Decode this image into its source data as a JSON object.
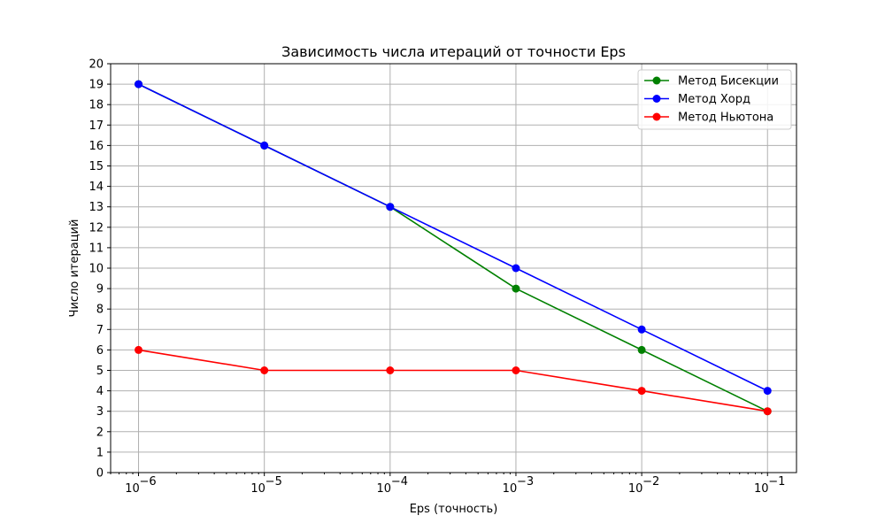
{
  "chart_data": {
    "type": "line",
    "title": "Зависимость числа итераций от точности Eps",
    "xlabel": "Eps (точность)",
    "ylabel": "Число итераций",
    "x_scale": "log",
    "xlim": [
      6e-07,
      0.17
    ],
    "ylim": [
      0,
      20
    ],
    "grid": true,
    "legend_position": "top-right",
    "x": [
      1e-06,
      1e-05,
      0.0001,
      0.001,
      0.01,
      0.1
    ],
    "x_tick_labels": [
      {
        "value": 1e-06,
        "base": "10",
        "exp": "−6"
      },
      {
        "value": 1e-05,
        "base": "10",
        "exp": "−5"
      },
      {
        "value": 0.0001,
        "base": "10",
        "exp": "−4"
      },
      {
        "value": 0.001,
        "base": "10",
        "exp": "−3"
      },
      {
        "value": 0.01,
        "base": "10",
        "exp": "−2"
      },
      {
        "value": 0.1,
        "base": "10",
        "exp": "−1"
      }
    ],
    "y_ticks": [
      0,
      1,
      2,
      3,
      4,
      5,
      6,
      7,
      8,
      9,
      10,
      11,
      12,
      13,
      14,
      15,
      16,
      17,
      18,
      19,
      20
    ],
    "series": [
      {
        "name": "Метод Бисекции",
        "color": "#008000",
        "values": [
          19,
          16,
          13,
          9,
          6,
          3
        ]
      },
      {
        "name": "Метод Хорд",
        "color": "#0000ff",
        "values": [
          19,
          16,
          13,
          10,
          7,
          4
        ]
      },
      {
        "name": "Метод Ньютона",
        "color": "#ff0000",
        "values": [
          6,
          5,
          5,
          5,
          4,
          3
        ]
      }
    ]
  }
}
